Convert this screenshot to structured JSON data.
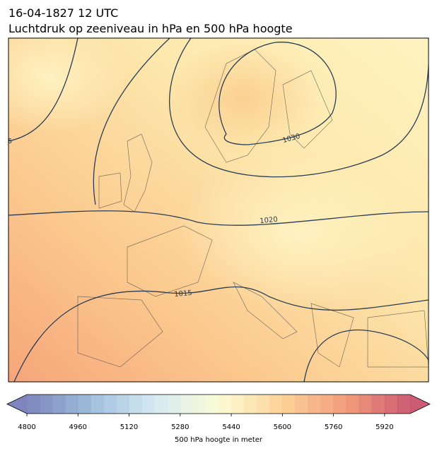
{
  "header": {
    "title": "16-04-1827 12 UTC",
    "subtitle": "Luchtdruk op zeeniveau in hPa en 500 hPa hoogte"
  },
  "map": {
    "contour_labels": [
      "5",
      "1030",
      "1020",
      "1015"
    ]
  },
  "colorbar": {
    "lim": [
      4800,
      6000
    ],
    "step": 40,
    "ticks": [
      4800,
      4960,
      5120,
      5280,
      5440,
      5600,
      5760,
      5920
    ],
    "colormap": [
      "#6670b0",
      "#8fb3d6",
      "#cde6ef",
      "#fbfbce",
      "#fdca86",
      "#f08a64",
      "#c2405a"
    ],
    "extend": "both",
    "label": "500 hPa hoogte in meter"
  }
}
